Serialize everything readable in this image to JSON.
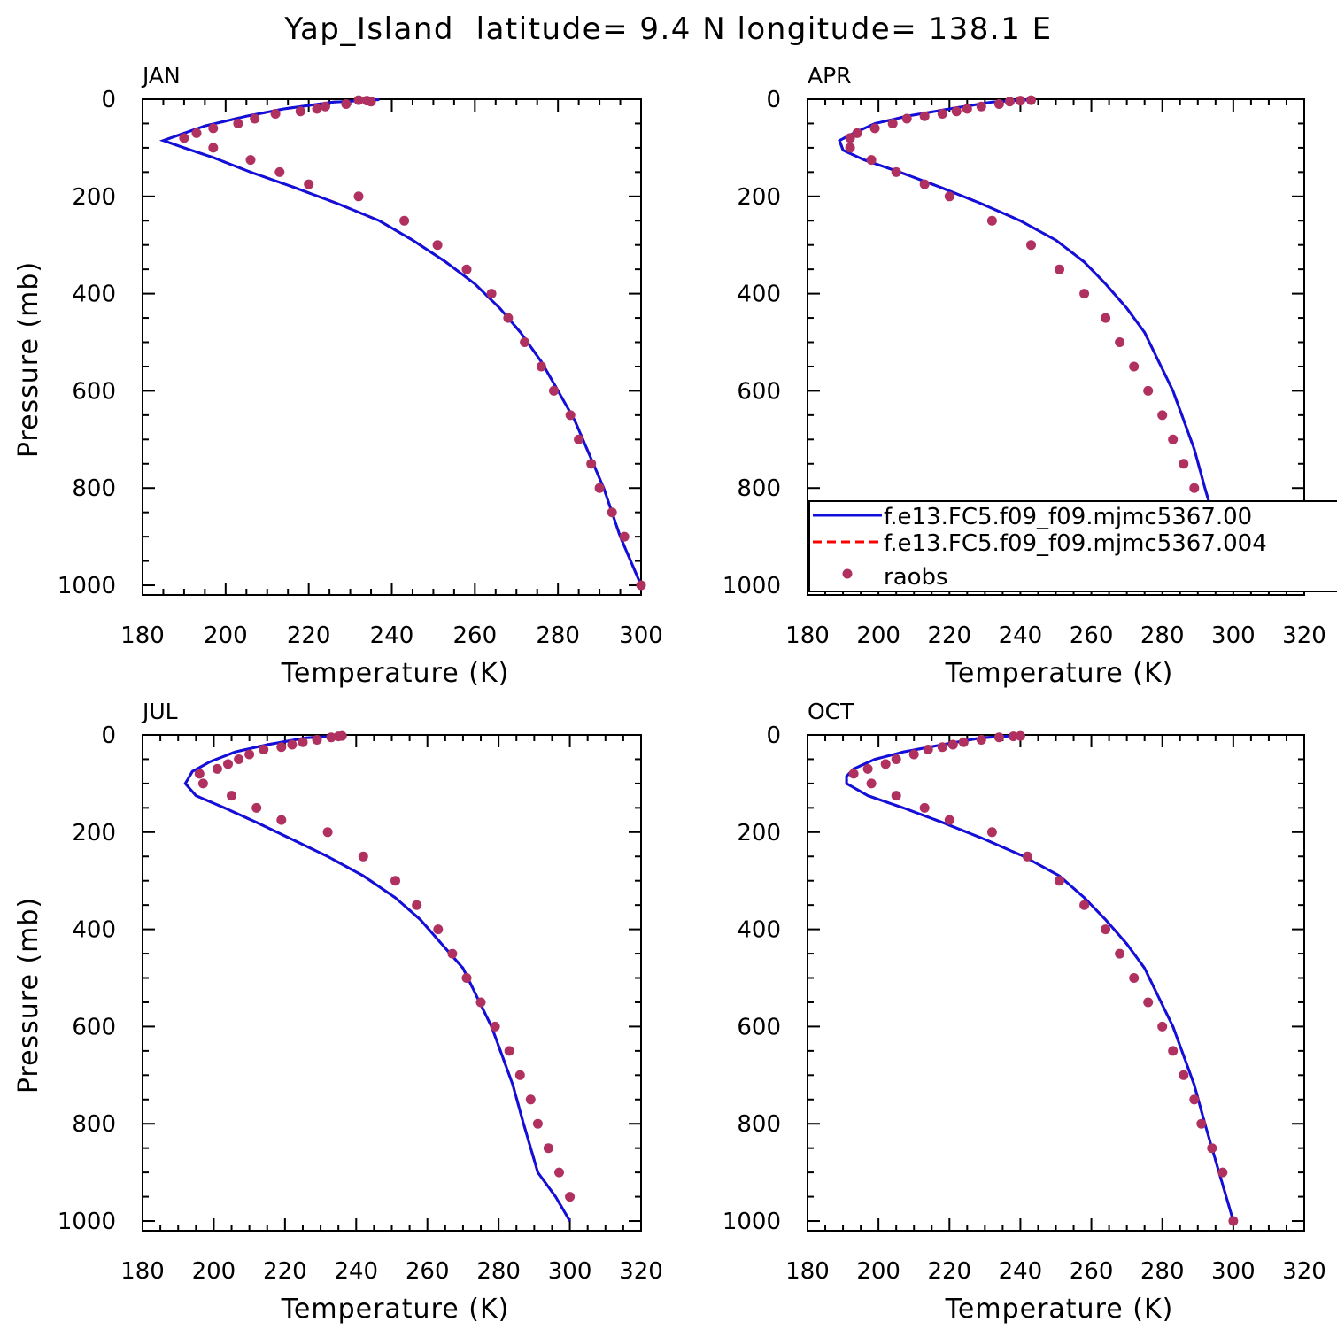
{
  "figure": {
    "title": "Yap_Island  latitude= 9.4 N longitude= 138.1 E"
  },
  "colors": {
    "model_solid": "#1010dd",
    "model_dashed": "#ff0000",
    "obs": "#b03060",
    "axis": "#000000"
  },
  "legend": {
    "items": [
      {
        "label": "f.e13.FC5.f09_f09.mjmc5367.00",
        "style": "solid-line"
      },
      {
        "label": "f.e13.FC5.f09_f09.mjmc5367.004",
        "style": "dashed-line"
      },
      {
        "label": "raobs",
        "style": "dot"
      }
    ]
  },
  "chart_data": [
    {
      "type": "line",
      "panel": "JAN",
      "xlabel": "Temperature (K)",
      "ylabel": "Pressure (mb)",
      "xlim": [
        180,
        300
      ],
      "ylim": [
        1020,
        0
      ],
      "xticks": [
        180,
        200,
        220,
        240,
        260,
        280,
        300
      ],
      "yticks": [
        0,
        200,
        400,
        600,
        800,
        1000
      ],
      "series": [
        {
          "style": "model",
          "x": [
            237,
            226,
            214,
            205,
            195,
            190,
            185,
            190,
            197,
            206,
            216,
            227,
            237,
            245,
            253,
            260,
            266,
            271,
            276,
            280,
            284,
            287,
            291,
            295,
            300
          ],
          "y": [
            1,
            6,
            20,
            35,
            55,
            70,
            85,
            100,
            120,
            150,
            180,
            215,
            250,
            290,
            335,
            380,
            430,
            480,
            540,
            600,
            660,
            720,
            800,
            900,
            1000
          ]
        },
        {
          "style": "obs",
          "x": [
            232,
            234,
            235,
            229,
            224,
            222,
            218,
            212,
            207,
            203,
            197,
            193,
            190,
            197,
            206,
            213,
            220,
            232,
            243,
            251,
            258,
            264,
            268,
            272,
            276,
            279,
            283,
            285,
            288,
            290,
            293,
            296,
            300
          ],
          "y": [
            2,
            3,
            5,
            10,
            15,
            20,
            25,
            30,
            40,
            50,
            60,
            70,
            80,
            100,
            125,
            150,
            175,
            200,
            250,
            300,
            350,
            400,
            450,
            500,
            550,
            600,
            650,
            700,
            750,
            800,
            850,
            900,
            1000
          ]
        }
      ]
    },
    {
      "type": "line",
      "panel": "APR",
      "xlabel": "Temperature (K)",
      "ylabel": "",
      "xlim": [
        180,
        320
      ],
      "ylim": [
        1020,
        0
      ],
      "xticks": [
        180,
        200,
        220,
        240,
        260,
        280,
        300,
        320
      ],
      "yticks": [
        0,
        200,
        400,
        600,
        800,
        1000
      ],
      "series": [
        {
          "style": "model",
          "x": [
            243,
            232,
            220,
            208,
            199,
            193,
            189,
            190,
            196,
            206,
            217,
            229,
            240,
            250,
            258,
            264,
            270,
            275,
            279,
            283,
            286,
            289,
            292,
            296,
            300
          ],
          "y": [
            1,
            6,
            20,
            35,
            50,
            70,
            85,
            105,
            125,
            150,
            180,
            215,
            250,
            290,
            335,
            380,
            430,
            480,
            540,
            600,
            660,
            720,
            800,
            900,
            1000
          ]
        },
        {
          "style": "obs",
          "x": [
            243,
            240,
            237,
            234,
            229,
            225,
            222,
            218,
            213,
            208,
            204,
            199,
            194,
            192,
            192,
            198,
            205,
            213,
            220,
            232,
            243,
            251,
            258,
            264,
            268,
            272,
            276,
            280,
            283,
            286,
            289,
            292,
            294,
            297,
            300
          ],
          "y": [
            2,
            3,
            5,
            10,
            15,
            20,
            25,
            30,
            35,
            40,
            50,
            60,
            70,
            80,
            100,
            125,
            150,
            175,
            200,
            250,
            300,
            350,
            400,
            450,
            500,
            550,
            600,
            650,
            700,
            750,
            800,
            850,
            900,
            950,
            1000
          ]
        }
      ]
    },
    {
      "type": "line",
      "panel": "JUL",
      "xlabel": "Temperature (K)",
      "ylabel": "Pressure (mb)",
      "xlim": [
        180,
        320
      ],
      "ylim": [
        1020,
        0
      ],
      "xticks": [
        180,
        200,
        220,
        240,
        260,
        280,
        300,
        320
      ],
      "yticks": [
        0,
        200,
        400,
        600,
        800,
        1000
      ],
      "series": [
        {
          "style": "model",
          "x": [
            237,
            226,
            215,
            206,
            199,
            194,
            192,
            195,
            203,
            212,
            222,
            232,
            242,
            251,
            258,
            264,
            270,
            274,
            278,
            281,
            284,
            287,
            291,
            296,
            300
          ],
          "y": [
            1,
            6,
            20,
            35,
            55,
            75,
            100,
            125,
            150,
            180,
            215,
            250,
            290,
            335,
            380,
            430,
            480,
            540,
            600,
            660,
            720,
            800,
            900,
            950,
            1000
          ]
        },
        {
          "style": "obs",
          "x": [
            236,
            235,
            233,
            229,
            225,
            222,
            219,
            214,
            210,
            207,
            204,
            201,
            196,
            197,
            205,
            212,
            219,
            232,
            242,
            251,
            257,
            263,
            267,
            271,
            275,
            279,
            283,
            286,
            289,
            291,
            294,
            297,
            300
          ],
          "y": [
            2,
            3,
            5,
            10,
            15,
            20,
            25,
            30,
            40,
            50,
            60,
            70,
            80,
            100,
            125,
            150,
            175,
            200,
            250,
            300,
            350,
            400,
            450,
            500,
            550,
            600,
            650,
            700,
            750,
            800,
            850,
            900,
            950
          ]
        }
      ]
    },
    {
      "type": "line",
      "panel": "OCT",
      "xlabel": "Temperature (K)",
      "ylabel": "",
      "xlim": [
        180,
        320
      ],
      "ylim": [
        1020,
        0
      ],
      "xticks": [
        180,
        200,
        220,
        240,
        260,
        280,
        300,
        320
      ],
      "yticks": [
        0,
        200,
        400,
        600,
        800,
        1000
      ],
      "series": [
        {
          "style": "model",
          "x": [
            240,
            229,
            218,
            207,
            199,
            193,
            191,
            191,
            197,
            207,
            218,
            230,
            241,
            251,
            258,
            264,
            270,
            275,
            279,
            283,
            286,
            289,
            292,
            296,
            300
          ],
          "y": [
            1,
            6,
            20,
            35,
            50,
            70,
            85,
            100,
            125,
            150,
            180,
            215,
            250,
            290,
            335,
            380,
            430,
            480,
            540,
            600,
            660,
            720,
            800,
            900,
            1000
          ]
        },
        {
          "style": "obs",
          "x": [
            240,
            238,
            234,
            229,
            224,
            221,
            218,
            214,
            210,
            205,
            202,
            197,
            193,
            198,
            205,
            213,
            220,
            232,
            242,
            251,
            258,
            264,
            268,
            272,
            276,
            280,
            283,
            286,
            289,
            291,
            294,
            297,
            300
          ],
          "y": [
            2,
            3,
            5,
            10,
            15,
            20,
            25,
            30,
            40,
            50,
            60,
            70,
            80,
            100,
            125,
            150,
            175,
            200,
            250,
            300,
            350,
            400,
            450,
            500,
            550,
            600,
            650,
            700,
            750,
            800,
            850,
            900,
            1000
          ]
        }
      ]
    }
  ]
}
